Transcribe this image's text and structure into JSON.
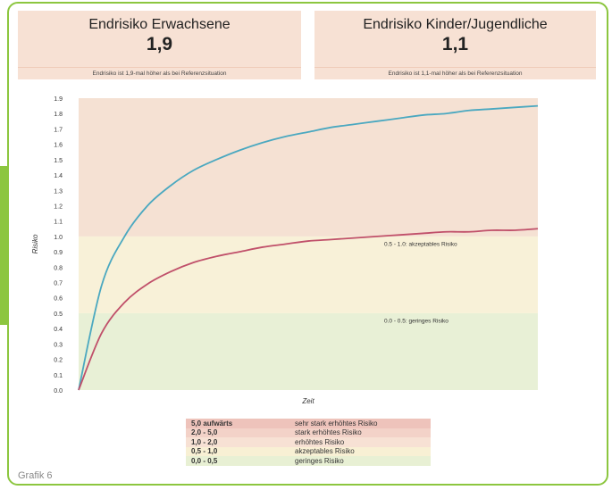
{
  "cards": [
    {
      "title": "Endrisiko Erwachsene",
      "value": "1,9",
      "note": "Endrisiko ist 1,9-mal höher als bei Referenzsituation"
    },
    {
      "title": "Endrisiko Kinder/Jugendliche",
      "value": "1,1",
      "note": "Endrisiko ist 1,1-mal höher als bei Referenzsituation"
    }
  ],
  "chart_data": {
    "type": "line",
    "xlabel": "Zeit",
    "ylabel": "Risiko",
    "ylim": [
      0,
      1.9
    ],
    "y_ticks": [
      "0.0",
      "0.1",
      "0.2",
      "0.3",
      "0.4",
      "0.5",
      "0.6",
      "0.7",
      "0.8",
      "0.9",
      "1.0",
      "1.1",
      "1.2",
      "1.3",
      "1.4",
      "1.5",
      "1.6",
      "1.7",
      "1.8",
      "1.9"
    ],
    "x_tick_labels_shown": false,
    "bands": [
      {
        "from": 0.0,
        "to": 0.5,
        "color": "#e8f0d6",
        "label": "0.0 - 0.5: geringes Risiko"
      },
      {
        "from": 0.5,
        "to": 1.0,
        "color": "#f8f1d8",
        "label": "0.5 - 1.0: akzeptables Risiko"
      },
      {
        "from": 1.0,
        "to": 1.9,
        "color": "#f5e1d3",
        "label": ""
      }
    ],
    "x": [
      0,
      0.05,
      0.1,
      0.15,
      0.2,
      0.25,
      0.3,
      0.35,
      0.4,
      0.45,
      0.5,
      0.55,
      0.6,
      0.65,
      0.7,
      0.75,
      0.8,
      0.85,
      0.9,
      0.95,
      1.0
    ],
    "series": [
      {
        "color": "#4aa8c0",
        "values": [
          0,
          0.68,
          1.0,
          1.2,
          1.33,
          1.43,
          1.5,
          1.56,
          1.61,
          1.65,
          1.68,
          1.71,
          1.73,
          1.75,
          1.77,
          1.79,
          1.8,
          1.82,
          1.83,
          1.84,
          1.85
        ]
      },
      {
        "color": "#c0506a",
        "values": [
          0,
          0.37,
          0.57,
          0.69,
          0.77,
          0.83,
          0.87,
          0.9,
          0.93,
          0.95,
          0.97,
          0.98,
          0.99,
          1.0,
          1.01,
          1.02,
          1.03,
          1.03,
          1.04,
          1.04,
          1.05
        ]
      }
    ]
  },
  "legend_table": [
    {
      "range": "5,0 aufwärts",
      "label": "sehr stark erhöhtes Risiko",
      "color": "#eec3bb"
    },
    {
      "range": "2,0 - 5,0",
      "label": "stark erhöhtes Risiko",
      "color": "#f3d2c8"
    },
    {
      "range": "1,0 - 2,0",
      "label": "erhöhtes Risiko",
      "color": "#f7e1d4"
    },
    {
      "range": "0,5 - 1,0",
      "label": "akzeptables Risiko",
      "color": "#f8f0d4"
    },
    {
      "range": "0,0 - 0,5",
      "label": "geringes Risiko",
      "color": "#e8f0d4"
    }
  ],
  "caption": "Grafik 6",
  "colors": {
    "frame": "#8cc63f",
    "card_bg": "#f7e1d4"
  }
}
